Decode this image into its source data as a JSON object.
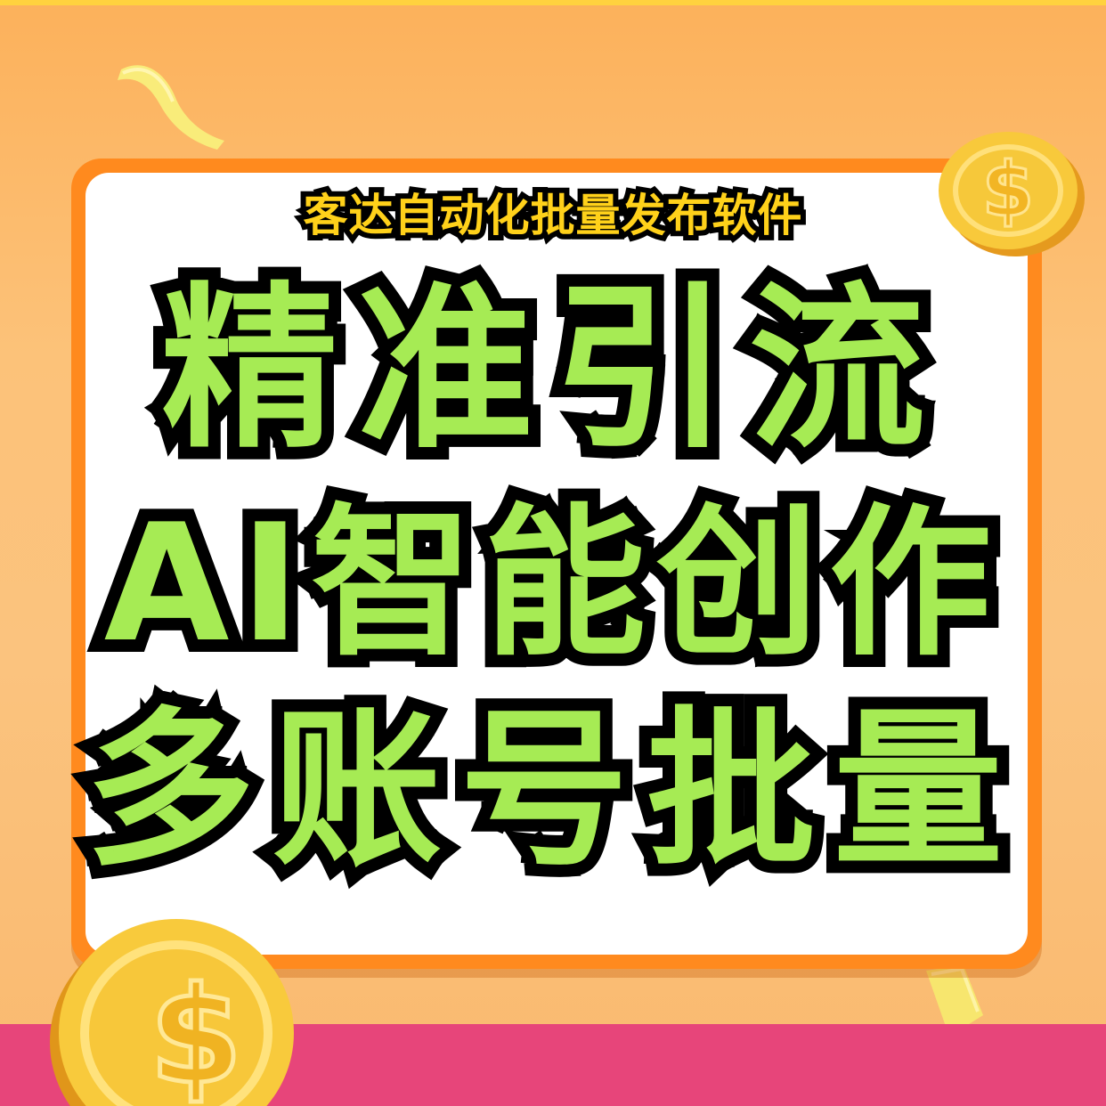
{
  "poster": {
    "subtitle": "客达自动化批量发布软件",
    "lines": [
      "精准引流",
      "AI智能创作",
      "多账号批量"
    ]
  },
  "icons": {
    "coin_top_right": "dollar-coin-icon",
    "coin_bottom_left": "dollar-coin-icon",
    "confetti": "confetti-ribbon-icon"
  },
  "colors": {
    "background": "#fcc279",
    "frame": "#ff8a1e",
    "card": "#ffffff",
    "headline_fill": "#a6eb54",
    "headline_stroke": "#000000",
    "subtitle_fill": "#ffd11a",
    "bottom_band": "#e7457a",
    "coin": "#f6c53a"
  }
}
